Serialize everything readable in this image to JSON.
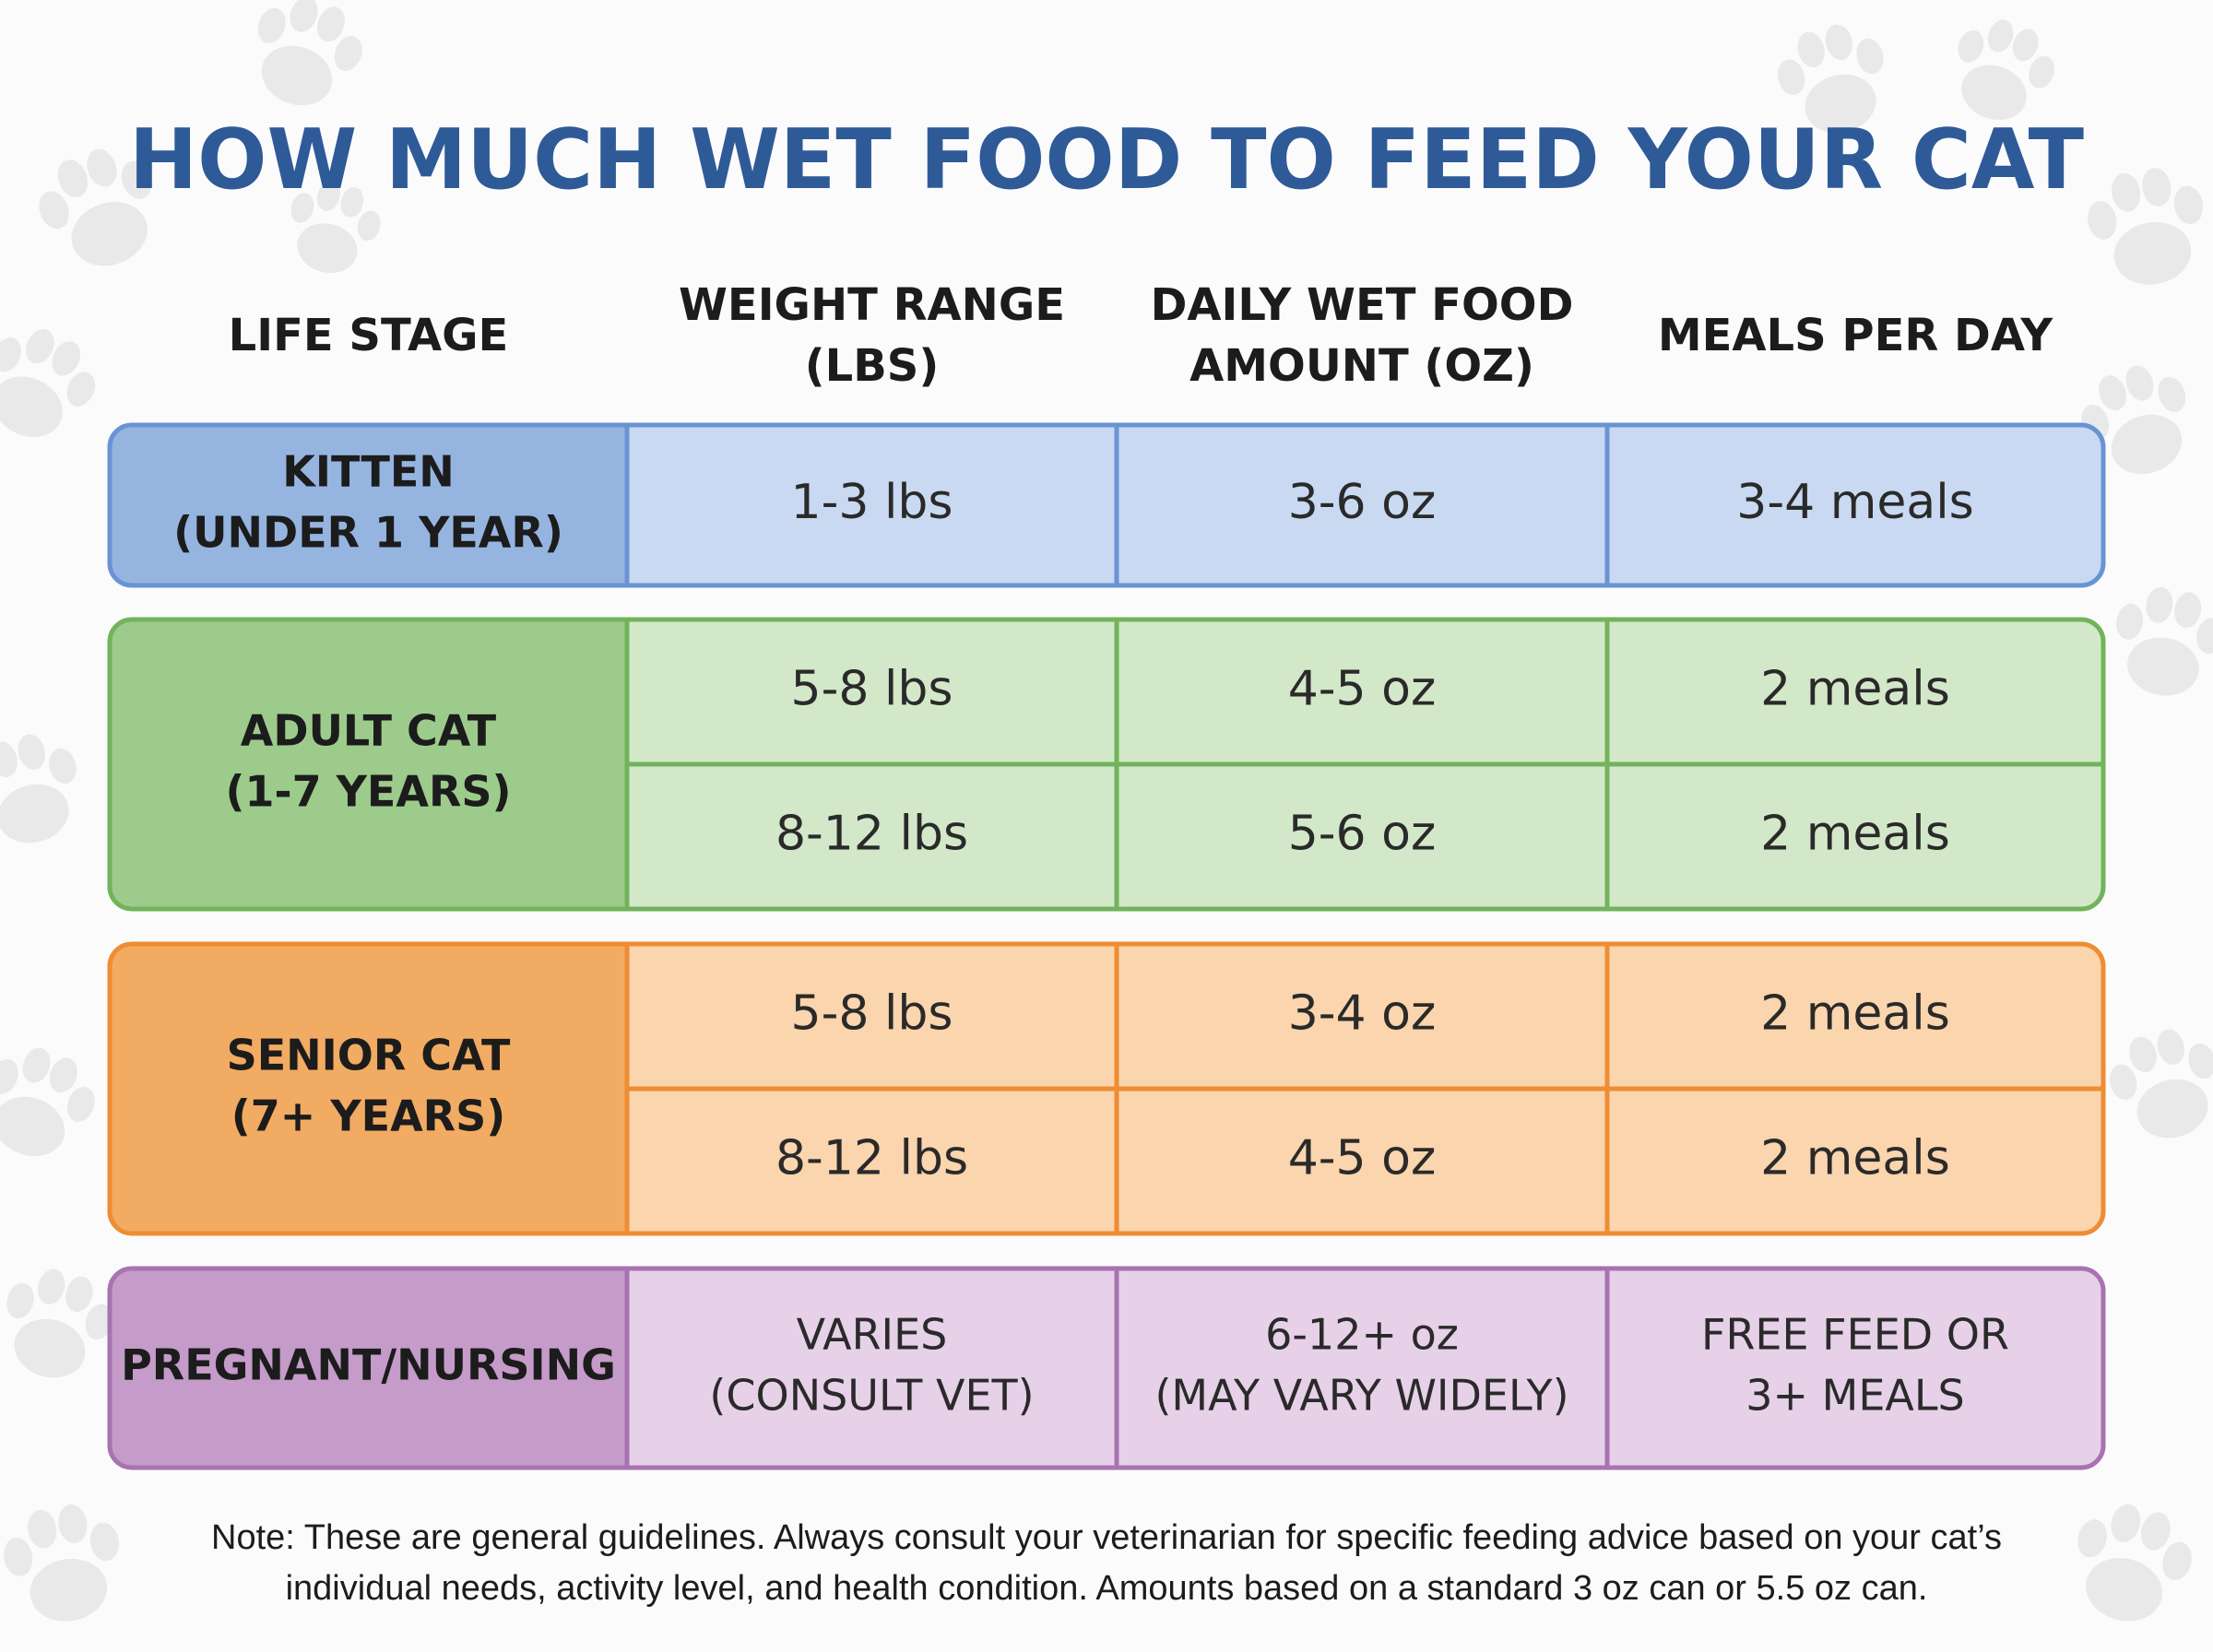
{
  "title": "HOW MUCH WET FOOD TO FEED YOUR CAT",
  "table": {
    "columns": [
      [
        "LIFE STAGE"
      ],
      [
        "WEIGHT RANGE",
        "(LBS)"
      ],
      [
        "DAILY WET FOOD",
        "AMOUNT (OZ)"
      ],
      [
        "MEALS PER DAY"
      ]
    ],
    "groups": [
      {
        "stage": [
          "KITTEN",
          "(UNDER 1 YEAR)"
        ],
        "rows": [
          [
            "1-3 lbs",
            "3-6 oz",
            "3-4 meals"
          ]
        ]
      },
      {
        "stage": [
          "ADULT CAT",
          "(1-7 YEARS)"
        ],
        "rows": [
          [
            "5-8 lbs",
            "4-5 oz",
            "2 meals"
          ],
          [
            "8-12 lbs",
            "5-6 oz",
            "2 meals"
          ]
        ]
      },
      {
        "stage": [
          "SENIOR CAT",
          "(7+ YEARS)"
        ],
        "rows": [
          [
            "5-8 lbs",
            "3-4 oz",
            "2 meals"
          ],
          [
            "8-12 lbs",
            "4-5 oz",
            "2 meals"
          ]
        ]
      },
      {
        "stage": [
          "PREGNANT/NURSING"
        ],
        "rows": [
          [
            [
              "VARIES",
              "(CONSULT VET)"
            ],
            [
              "6-12+ oz",
              "(MAY VARY WIDELY)"
            ],
            [
              "FREE FEED OR",
              "3+ MEALS"
            ]
          ]
        ]
      }
    ]
  },
  "note": [
    "Note: These are general guidelines. Always consult your veterinarian for specific feeding advice based on your cat’s",
    "individual needs, activity level, and health condition. Amounts based on a standard 3 oz can or 5.5 oz can."
  ]
}
